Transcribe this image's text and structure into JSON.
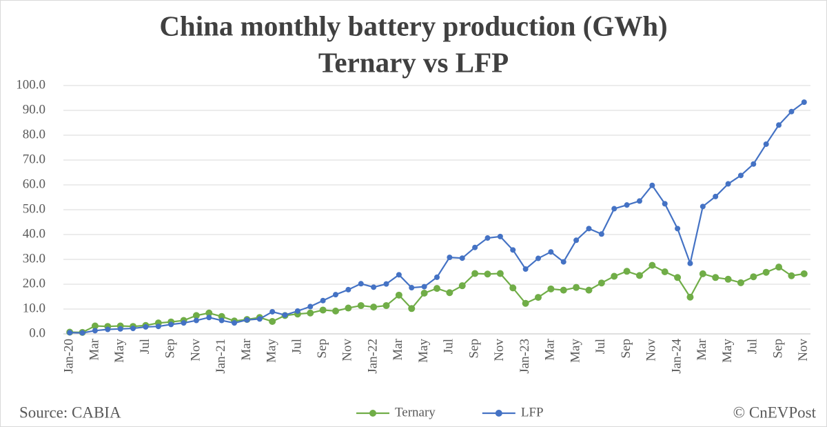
{
  "chart_data": {
    "type": "line",
    "title": [
      "China monthly battery production (GWh)",
      "Ternary vs LFP"
    ],
    "source": "Source: CABIA",
    "credit": "© CnEVPost",
    "categories": [
      "Jan-20",
      null,
      "Mar",
      null,
      "May",
      null,
      "Jul",
      null,
      "Sep",
      null,
      "Nov",
      null,
      "Jan-21",
      null,
      "Mar",
      null,
      "May",
      null,
      "Jul",
      null,
      "Sep",
      null,
      "Nov",
      null,
      "Jan-22",
      null,
      "Mar",
      null,
      "May",
      null,
      "Jul",
      null,
      "Sep",
      null,
      "Nov",
      null,
      "Jan-23",
      null,
      "Mar",
      null,
      "May",
      null,
      "Jul",
      null,
      "Sep",
      null,
      "Nov",
      null,
      "Jan-24",
      null,
      "Mar",
      null,
      "May",
      null,
      "Jul",
      null,
      "Sep",
      null,
      "Nov"
    ],
    "series": [
      {
        "name": "Ternary",
        "color": "#70ad47",
        "values": [
          0.7,
          0.6,
          3.2,
          3.0,
          3.2,
          3.0,
          3.4,
          4.4,
          4.8,
          5.4,
          7.4,
          8.4,
          7.0,
          5.2,
          5.8,
          6.6,
          5.0,
          7.4,
          8.0,
          8.4,
          9.6,
          9.2,
          10.4,
          11.4,
          10.8,
          11.4,
          15.6,
          10.2,
          16.4,
          18.3,
          16.6,
          19.4,
          24.3,
          24.1,
          24.3,
          18.5,
          12.3,
          14.7,
          18.1,
          17.6,
          18.7,
          17.6,
          20.5,
          23.2,
          25.2,
          23.5,
          27.6,
          25.0,
          22.7,
          14.8,
          24.2,
          22.7,
          22.0,
          20.6,
          23.0,
          24.8,
          26.9,
          23.4,
          24.2
        ]
      },
      {
        "name": "LFP",
        "color": "#4472c4",
        "values": [
          0.5,
          0.4,
          1.3,
          1.8,
          2.0,
          2.2,
          2.8,
          3.0,
          3.8,
          4.4,
          5.4,
          6.6,
          5.4,
          4.4,
          5.6,
          6.0,
          8.9,
          7.6,
          9.2,
          11.0,
          13.4,
          15.8,
          17.8,
          20.2,
          18.8,
          20.1,
          23.8,
          18.6,
          19.0,
          22.8,
          30.8,
          30.5,
          34.8,
          38.6,
          39.2,
          33.8,
          26.1,
          30.4,
          33.0,
          29.0,
          37.7,
          42.4,
          40.2,
          50.4,
          51.9,
          53.5,
          59.8,
          52.4,
          42.4,
          28.4,
          51.3,
          55.3,
          60.4,
          63.8,
          68.4,
          76.4,
          84.1,
          89.5,
          93.3
        ]
      }
    ],
    "ylim": [
      0,
      100
    ],
    "yticks": [
      {
        "value": 0,
        "label": "0.0"
      },
      {
        "value": 10,
        "label": "10.0"
      },
      {
        "value": 20,
        "label": "20.0"
      },
      {
        "value": 30,
        "label": "30.0"
      },
      {
        "value": 40,
        "label": "40.0"
      },
      {
        "value": 50,
        "label": "50.0"
      },
      {
        "value": 60,
        "label": "60.0"
      },
      {
        "value": 70,
        "label": "70.0"
      },
      {
        "value": 80,
        "label": "80.0"
      },
      {
        "value": 90,
        "label": "90.0"
      },
      {
        "value": 100,
        "label": "100.0"
      }
    ],
    "grid": true,
    "legend": "bottom"
  }
}
